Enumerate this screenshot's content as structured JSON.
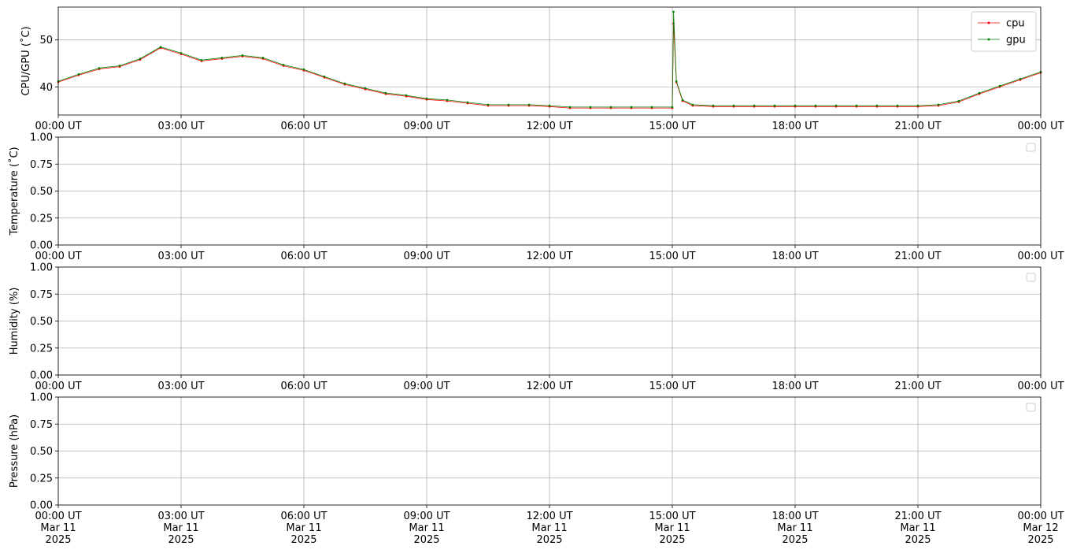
{
  "chart_data": [
    {
      "type": "line",
      "ylabel": "CPU/GPU (˚C)",
      "legend": "upper right",
      "grid": true,
      "xlim": [
        0,
        24
      ],
      "xticks": [
        {
          "value": 0,
          "label": "00:00 UT"
        },
        {
          "value": 3,
          "label": "03:00 UT"
        },
        {
          "value": 6,
          "label": "06:00 UT"
        },
        {
          "value": 9,
          "label": "09:00 UT"
        },
        {
          "value": 12,
          "label": "12:00 UT"
        },
        {
          "value": 15,
          "label": "15:00 UT"
        },
        {
          "value": 18,
          "label": "18:00 UT"
        },
        {
          "value": 21,
          "label": "21:00 UT"
        },
        {
          "value": 24,
          "label": "00:00 UT"
        }
      ],
      "ylim": [
        34,
        57
      ],
      "yticks": [
        40,
        50
      ],
      "x": [
        0,
        0.5,
        1,
        1.5,
        2,
        2.5,
        3,
        3.5,
        4,
        4.5,
        5,
        5.5,
        6,
        6.5,
        7,
        7.5,
        8,
        8.5,
        9,
        9.5,
        10,
        10.5,
        11,
        11.5,
        12,
        12.5,
        13,
        13.5,
        14,
        14.5,
        15,
        15.03,
        15.1,
        15.25,
        15.5,
        16,
        16.5,
        17,
        17.5,
        18,
        18.5,
        19,
        19.5,
        20,
        20.5,
        21,
        21.5,
        22,
        22.5,
        23,
        23.5,
        24
      ],
      "series": [
        {
          "name": "cpu",
          "color": "#ff0000",
          "values": [
            41,
            42.5,
            43.8,
            44.3,
            45.8,
            48.3,
            47,
            45.5,
            46,
            46.5,
            46,
            44.5,
            43.5,
            42,
            40.5,
            39.5,
            38.5,
            38,
            37.3,
            37,
            36.5,
            36,
            36,
            36,
            35.8,
            35.5,
            35.5,
            35.5,
            35.5,
            35.5,
            35.5,
            53.5,
            41,
            37,
            36,
            35.8,
            35.8,
            35.8,
            35.8,
            35.8,
            35.8,
            35.8,
            35.8,
            35.8,
            35.8,
            35.8,
            36,
            36.8,
            38.5,
            40,
            41.5,
            43
          ]
        },
        {
          "name": "gpu",
          "color": "#008000",
          "values": [
            41.2,
            42.7,
            44,
            44.5,
            46,
            48.5,
            47.2,
            45.7,
            46.2,
            46.7,
            46.2,
            44.7,
            43.7,
            42.2,
            40.7,
            39.7,
            38.7,
            38.2,
            37.5,
            37.2,
            36.7,
            36.2,
            36.2,
            36.2,
            36,
            35.7,
            35.7,
            35.7,
            35.7,
            35.7,
            35.7,
            56,
            41.2,
            37.2,
            36.2,
            36,
            36,
            36,
            36,
            36,
            36,
            36,
            36,
            36,
            36,
            36,
            36.2,
            37,
            38.7,
            40.2,
            41.7,
            43.2
          ]
        }
      ]
    },
    {
      "type": "line",
      "ylabel": "Temperature (˚C)",
      "grid": true,
      "xlim": [
        0,
        24
      ],
      "xticks": [
        {
          "value": 0,
          "label": "00:00 UT"
        },
        {
          "value": 3,
          "label": "03:00 UT"
        },
        {
          "value": 6,
          "label": "06:00 UT"
        },
        {
          "value": 9,
          "label": "09:00 UT"
        },
        {
          "value": 12,
          "label": "12:00 UT"
        },
        {
          "value": 15,
          "label": "15:00 UT"
        },
        {
          "value": 18,
          "label": "18:00 UT"
        },
        {
          "value": 21,
          "label": "21:00 UT"
        },
        {
          "value": 24,
          "label": "00:00 UT"
        }
      ],
      "ylim": [
        0,
        1
      ],
      "yticks": [
        {
          "value": 0,
          "label": "0.00"
        },
        0.25,
        {
          "value": 0.5,
          "label": "0.50"
        },
        0.75,
        {
          "value": 1,
          "label": "1.00"
        }
      ]
    },
    {
      "type": "line",
      "ylabel": "Humidity (%)",
      "grid": true,
      "xlim": [
        0,
        24
      ],
      "xticks": [
        {
          "value": 0,
          "label": "00:00 UT"
        },
        {
          "value": 3,
          "label": "03:00 UT"
        },
        {
          "value": 6,
          "label": "06:00 UT"
        },
        {
          "value": 9,
          "label": "09:00 UT"
        },
        {
          "value": 12,
          "label": "12:00 UT"
        },
        {
          "value": 15,
          "label": "15:00 UT"
        },
        {
          "value": 18,
          "label": "18:00 UT"
        },
        {
          "value": 21,
          "label": "21:00 UT"
        },
        {
          "value": 24,
          "label": "00:00 UT"
        }
      ],
      "ylim": [
        0,
        1
      ],
      "yticks": [
        {
          "value": 0,
          "label": "0.00"
        },
        0.25,
        {
          "value": 0.5,
          "label": "0.50"
        },
        0.75,
        {
          "value": 1,
          "label": "1.00"
        }
      ]
    },
    {
      "type": "line",
      "ylabel": "Pressure (hPa)",
      "grid": true,
      "xlim": [
        0,
        24
      ],
      "xticks": [
        {
          "value": 0,
          "label": "00:00 UT\nMar 11\n2025"
        },
        {
          "value": 3,
          "label": "03:00 UT\nMar 11\n2025"
        },
        {
          "value": 6,
          "label": "06:00 UT\nMar 11\n2025"
        },
        {
          "value": 9,
          "label": "09:00 UT\nMar 11\n2025"
        },
        {
          "value": 12,
          "label": "12:00 UT\nMar 11\n2025"
        },
        {
          "value": 15,
          "label": "15:00 UT\nMar 11\n2025"
        },
        {
          "value": 18,
          "label": "18:00 UT\nMar 11\n2025"
        },
        {
          "value": 21,
          "label": "21:00 UT\nMar 11\n2025"
        },
        {
          "value": 24,
          "label": "00:00 UT\nMar 12\n2025"
        }
      ],
      "ylim": [
        0,
        1
      ],
      "yticks": [
        {
          "value": 0,
          "label": "0.00"
        },
        0.25,
        {
          "value": 0.5,
          "label": "0.50"
        },
        0.75,
        {
          "value": 1,
          "label": "1.00"
        }
      ]
    }
  ]
}
